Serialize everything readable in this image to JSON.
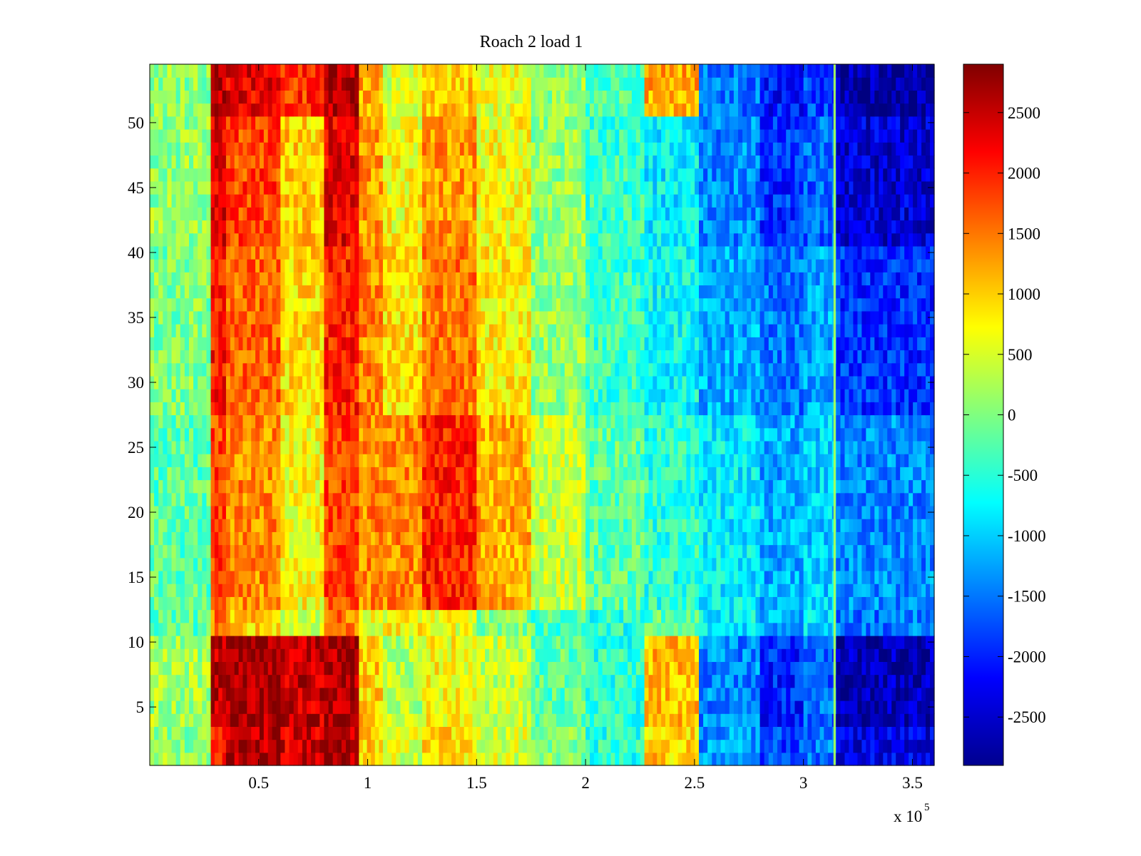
{
  "chart_data": {
    "type": "heatmap",
    "title": "Roach 2 load 1",
    "xlabel": "",
    "ylabel": "",
    "x_exponent_label": "x 10",
    "x_exponent_power": "5",
    "xlim": [
      0,
      3.6
    ],
    "ylim": [
      0.5,
      54.5
    ],
    "x_ticks": [
      0.5,
      1,
      1.5,
      2,
      2.5,
      3,
      3.5
    ],
    "x_tick_labels": [
      "0.5",
      "1",
      "1.5",
      "2",
      "2.5",
      "3",
      "3.5"
    ],
    "y_ticks": [
      5,
      10,
      15,
      20,
      25,
      30,
      35,
      40,
      45,
      50
    ],
    "y_tick_labels": [
      "5",
      "10",
      "15",
      "20",
      "25",
      "30",
      "35",
      "40",
      "45",
      "50"
    ],
    "colormap": "jet",
    "color_limits": [
      -2900,
      2900
    ],
    "colorbar_ticks": [
      2500,
      2000,
      1500,
      1000,
      500,
      0,
      -500,
      -1000,
      -1500,
      -2000,
      -2500
    ],
    "colorbar_tick_labels": [
      "2500",
      "2000",
      "1500",
      "1000",
      "500",
      "0",
      "-500",
      "-1000",
      "-1500",
      "-2000",
      "-2500"
    ],
    "rows": 54,
    "column_x_edges": [
      0,
      0.28,
      0.35,
      0.6,
      0.8,
      0.96,
      1.07,
      1.25,
      1.5,
      1.75,
      2.0,
      2.27,
      2.52,
      2.8,
      3.0,
      3.15,
      3.6
    ],
    "row_groups": [
      {
        "rows": [
          1,
          3
        ],
        "values": [
          100,
          2000,
          2600,
          2400,
          2600,
          1000,
          500,
          900,
          500,
          0,
          -500,
          1000,
          -1300,
          -1800,
          -1500,
          -2300
        ]
      },
      {
        "rows": [
          4,
          10
        ],
        "values": [
          200,
          2500,
          2700,
          2500,
          2700,
          1000,
          300,
          700,
          400,
          -200,
          -500,
          1100,
          -1400,
          -2000,
          -1600,
          -2600
        ]
      },
      {
        "rows": [
          11,
          12
        ],
        "values": [
          -200,
          1500,
          1000,
          500,
          1500,
          600,
          700,
          600,
          0,
          -300,
          -500,
          -200,
          -800,
          -1200,
          -900,
          -1500
        ]
      },
      {
        "rows": [
          13,
          27
        ],
        "values": [
          -200,
          1800,
          1400,
          700,
          1800,
          1400,
          1400,
          2000,
          1200,
          400,
          -200,
          -500,
          -800,
          -1200,
          -1000,
          -1400
        ]
      },
      {
        "rows": [
          28,
          40
        ],
        "values": [
          0,
          2100,
          1600,
          900,
          2000,
          1400,
          900,
          1500,
          800,
          100,
          -400,
          -700,
          -1200,
          -1500,
          -1200,
          -1900
        ]
      },
      {
        "rows": [
          41,
          50
        ],
        "values": [
          100,
          2300,
          1800,
          1000,
          2300,
          1300,
          700,
          1300,
          700,
          100,
          -400,
          -800,
          -1400,
          -1900,
          -1600,
          -2400
        ]
      },
      {
        "rows": [
          51,
          54
        ],
        "values": [
          100,
          2600,
          2300,
          1900,
          2600,
          1200,
          500,
          1000,
          600,
          100,
          -300,
          1200,
          -1500,
          -2100,
          -1800,
          -2700
        ]
      }
    ]
  }
}
